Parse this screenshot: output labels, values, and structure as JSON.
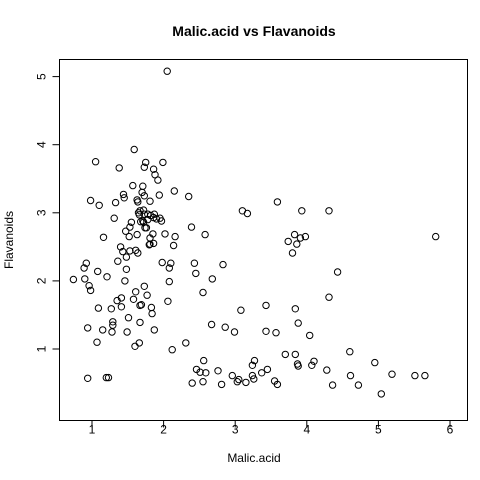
{
  "chart_data": {
    "type": "scatter",
    "title": "Malic.acid vs Flavanoids",
    "xlabel": "Malic.acid",
    "ylabel": "Flavanoids",
    "xlim": [
      0.74,
      5.8
    ],
    "ylim": [
      0.34,
      5.08
    ],
    "xticks": [
      "1",
      "2",
      "3",
      "4",
      "5",
      "6"
    ],
    "yticks": [
      "1",
      "2",
      "3",
      "4",
      "5"
    ],
    "grid": false,
    "legend": "none",
    "point_style": "open-circle",
    "points": [
      [
        0.74,
        2.02
      ],
      [
        0.89,
        2.19
      ],
      [
        0.9,
        2.03
      ],
      [
        0.92,
        2.26
      ],
      [
        0.94,
        0.57
      ],
      [
        0.94,
        1.31
      ],
      [
        0.96,
        1.93
      ],
      [
        0.98,
        3.18
      ],
      [
        0.98,
        1.86
      ],
      [
        1.05,
        3.75
      ],
      [
        1.07,
        1.1
      ],
      [
        1.08,
        2.14
      ],
      [
        1.09,
        1.6
      ],
      [
        1.1,
        3.11
      ],
      [
        1.15,
        1.28
      ],
      [
        1.16,
        2.64
      ],
      [
        1.2,
        0.58
      ],
      [
        1.21,
        2.06
      ],
      [
        1.23,
        0.58
      ],
      [
        1.27,
        1.59
      ],
      [
        1.28,
        1.25
      ],
      [
        1.29,
        1.35
      ],
      [
        1.29,
        1.4
      ],
      [
        1.31,
        2.92
      ],
      [
        1.33,
        3.15
      ],
      [
        1.35,
        1.71
      ],
      [
        1.36,
        2.29
      ],
      [
        1.38,
        3.66
      ],
      [
        1.4,
        2.5
      ],
      [
        1.41,
        1.62
      ],
      [
        1.41,
        1.75
      ],
      [
        1.43,
        2.43
      ],
      [
        1.44,
        3.27
      ],
      [
        1.45,
        3.22
      ],
      [
        1.46,
        2.0
      ],
      [
        1.47,
        2.73
      ],
      [
        1.48,
        2.17
      ],
      [
        1.48,
        2.35
      ],
      [
        1.49,
        1.25
      ],
      [
        1.51,
        1.46
      ],
      [
        1.52,
        2.65
      ],
      [
        1.53,
        2.44
      ],
      [
        1.53,
        2.79
      ],
      [
        1.55,
        2.86
      ],
      [
        1.57,
        3.4
      ],
      [
        1.58,
        1.73
      ],
      [
        1.59,
        3.93
      ],
      [
        1.6,
        1.04
      ],
      [
        1.61,
        2.45
      ],
      [
        1.61,
        1.84
      ],
      [
        1.63,
        2.68
      ],
      [
        1.63,
        3.19
      ],
      [
        1.64,
        2.41
      ],
      [
        1.64,
        3.16
      ],
      [
        1.65,
        3.0
      ],
      [
        1.66,
        1.09
      ],
      [
        1.66,
        2.97
      ],
      [
        1.67,
        1.39
      ],
      [
        1.67,
        1.64
      ],
      [
        1.67,
        3.03
      ],
      [
        1.68,
        2.87
      ],
      [
        1.69,
        1.65
      ],
      [
        1.7,
        3.3
      ],
      [
        1.71,
        3.39
      ],
      [
        1.71,
        2.88
      ],
      [
        1.72,
        3.04
      ],
      [
        1.72,
        2.86
      ],
      [
        1.73,
        1.92
      ],
      [
        1.73,
        3.67
      ],
      [
        1.73,
        2.98
      ],
      [
        1.73,
        3.25
      ],
      [
        1.74,
        2.78
      ],
      [
        1.75,
        3.74
      ],
      [
        1.76,
        2.78
      ],
      [
        1.77,
        1.79
      ],
      [
        1.78,
        2.9
      ],
      [
        1.78,
        2.98
      ],
      [
        1.8,
        2.53
      ],
      [
        1.81,
        2.63
      ],
      [
        1.81,
        3.17
      ],
      [
        1.81,
        2.54
      ],
      [
        1.82,
        2.96
      ],
      [
        1.83,
        1.61
      ],
      [
        1.84,
        1.52
      ],
      [
        1.85,
        2.69
      ],
      [
        1.86,
        2.55
      ],
      [
        1.86,
        2.93
      ],
      [
        1.86,
        3.64
      ],
      [
        1.87,
        2.98
      ],
      [
        1.87,
        1.28
      ],
      [
        1.88,
        3.56
      ],
      [
        1.9,
        2.91
      ],
      [
        1.92,
        3.48
      ],
      [
        1.94,
        3.26
      ],
      [
        1.95,
        2.92
      ],
      [
        1.97,
        2.88
      ],
      [
        1.98,
        2.27
      ],
      [
        1.99,
        3.74
      ],
      [
        2.02,
        2.69
      ],
      [
        2.05,
        5.08
      ],
      [
        2.06,
        1.7
      ],
      [
        2.08,
        2.19
      ],
      [
        2.08,
        1.99
      ],
      [
        2.1,
        2.26
      ],
      [
        2.12,
        0.99
      ],
      [
        2.14,
        2.52
      ],
      [
        2.15,
        3.32
      ],
      [
        2.16,
        2.65
      ],
      [
        2.31,
        1.09
      ],
      [
        2.35,
        3.24
      ],
      [
        2.39,
        2.79
      ],
      [
        2.4,
        0.5
      ],
      [
        2.43,
        2.26
      ],
      [
        2.45,
        2.11
      ],
      [
        2.46,
        0.7
      ],
      [
        2.51,
        0.66
      ],
      [
        2.55,
        0.52
      ],
      [
        2.55,
        1.83
      ],
      [
        2.56,
        0.83
      ],
      [
        2.58,
        2.68
      ],
      [
        2.59,
        0.65
      ],
      [
        2.67,
        1.36
      ],
      [
        2.68,
        2.03
      ],
      [
        2.76,
        0.68
      ],
      [
        2.81,
        0.48
      ],
      [
        2.83,
        2.24
      ],
      [
        2.86,
        1.32
      ],
      [
        2.96,
        0.61
      ],
      [
        2.99,
        1.25
      ],
      [
        3.03,
        0.52
      ],
      [
        3.05,
        0.55
      ],
      [
        3.08,
        1.57
      ],
      [
        3.1,
        3.03
      ],
      [
        3.15,
        0.51
      ],
      [
        3.17,
        2.99
      ],
      [
        3.24,
        0.76
      ],
      [
        3.24,
        0.61
      ],
      [
        3.26,
        0.56
      ],
      [
        3.27,
        0.83
      ],
      [
        3.37,
        0.65
      ],
      [
        3.43,
        1.64
      ],
      [
        3.43,
        1.26
      ],
      [
        3.45,
        0.7
      ],
      [
        3.55,
        0.53
      ],
      [
        3.57,
        1.24
      ],
      [
        3.59,
        0.48
      ],
      [
        3.59,
        3.16
      ],
      [
        3.7,
        0.92
      ],
      [
        3.74,
        2.58
      ],
      [
        3.8,
        2.41
      ],
      [
        3.83,
        2.68
      ],
      [
        3.84,
        0.92
      ],
      [
        3.84,
        1.59
      ],
      [
        3.86,
        2.54
      ],
      [
        3.87,
        0.78
      ],
      [
        3.88,
        1.38
      ],
      [
        3.88,
        0.75
      ],
      [
        3.91,
        2.63
      ],
      [
        3.93,
        3.03
      ],
      [
        3.98,
        2.65
      ],
      [
        4.04,
        1.2
      ],
      [
        4.07,
        0.76
      ],
      [
        4.1,
        0.82
      ],
      [
        4.28,
        0.69
      ],
      [
        4.31,
        3.03
      ],
      [
        4.31,
        1.76
      ],
      [
        4.36,
        0.47
      ],
      [
        4.43,
        2.13
      ],
      [
        4.6,
        0.96
      ],
      [
        4.61,
        0.61
      ],
      [
        4.72,
        0.47
      ],
      [
        4.95,
        0.8
      ],
      [
        5.04,
        0.34
      ],
      [
        5.19,
        0.63
      ],
      [
        5.51,
        0.61
      ],
      [
        5.65,
        0.61
      ],
      [
        5.8,
        2.65
      ]
    ]
  }
}
